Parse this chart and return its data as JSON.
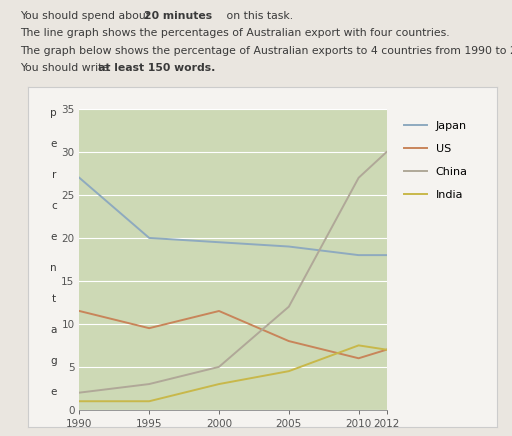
{
  "years": [
    1990,
    1995,
    2000,
    2005,
    2010,
    2012
  ],
  "japan": [
    27,
    20,
    19.5,
    19,
    18,
    18
  ],
  "us": [
    11.5,
    9.5,
    11.5,
    8,
    6,
    7
  ],
  "china": [
    2,
    3,
    5,
    12,
    27,
    30
  ],
  "india": [
    1,
    1,
    3,
    4.5,
    7.5,
    7
  ],
  "japan_color": "#8eaabf",
  "us_color": "#c8855a",
  "china_color": "#b0a898",
  "india_color": "#c8b84a",
  "chart_bg_color": "#cdd9b5",
  "outer_bg_color": "#eae6e0",
  "box_bg_color": "#f5f3f0",
  "ylim": [
    0,
    35
  ],
  "xlim": [
    1990,
    2012
  ],
  "yticks": [
    0,
    5,
    10,
    15,
    20,
    25,
    30,
    35
  ],
  "xticks": [
    1990,
    1995,
    2000,
    2005,
    2010,
    2012
  ]
}
